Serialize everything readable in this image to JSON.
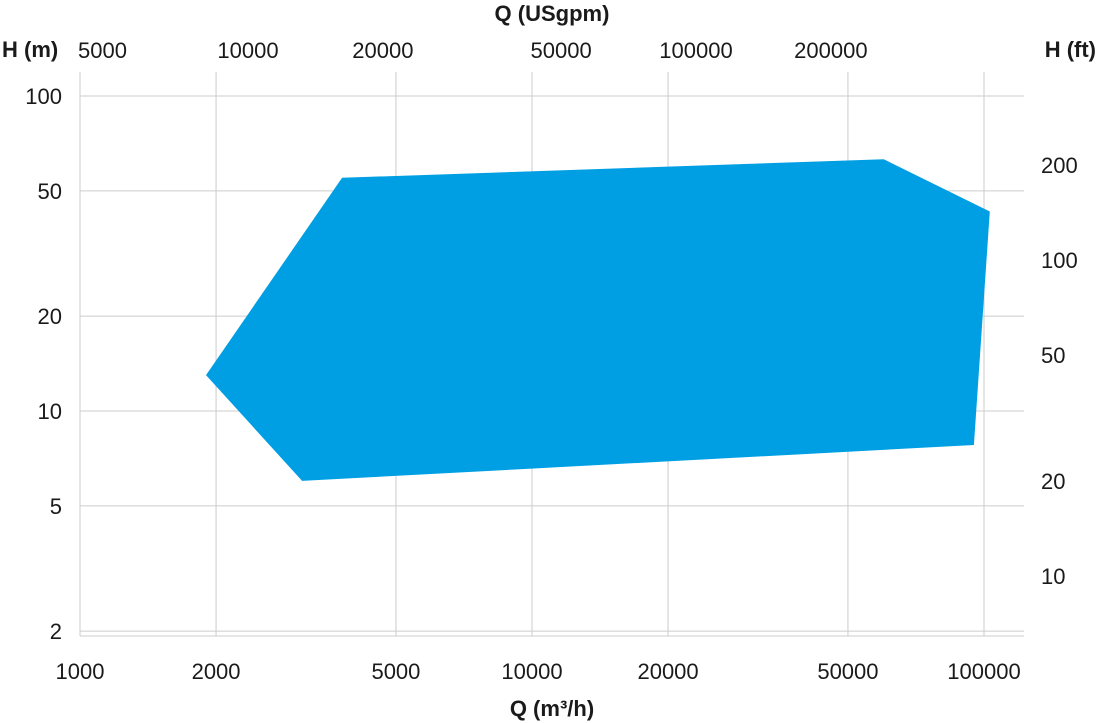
{
  "chart_data": {
    "type": "area",
    "title": "",
    "xlabel": "Q (m³/h)",
    "x2label": "Q (USgpm)",
    "ylabel": "H (m)",
    "y2label": "H (ft)",
    "xscale": "log",
    "yscale": "log",
    "xlim": [
      1000,
      120000
    ],
    "ylim": [
      2,
      125
    ],
    "grid": true,
    "x_ticks": [
      1000,
      2000,
      5000,
      10000,
      20000,
      50000,
      100000
    ],
    "x_tick_labels": [
      "1000",
      "2000",
      "5000",
      "10000",
      "20000",
      "50000",
      "100000"
    ],
    "y_ticks": [
      2,
      5,
      10,
      20,
      50,
      100
    ],
    "y_tick_labels": [
      "2",
      "5",
      "10",
      "20",
      "50",
      "100"
    ],
    "x2_ticks": [
      5000,
      10000,
      20000,
      50000,
      100000,
      200000
    ],
    "x2_tick_labels": [
      "5000",
      "10000",
      "20000",
      "50000",
      "100000",
      "200000"
    ],
    "y2_ticks": [
      10,
      20,
      50,
      100,
      200
    ],
    "y2_tick_labels": [
      "10",
      "20",
      "50",
      "100",
      "200"
    ],
    "series": [
      {
        "color": "#009fe3",
        "points": [
          {
            "x": 3800,
            "y": 55
          },
          {
            "x": 60000,
            "y": 63
          },
          {
            "x": 103000,
            "y": 43
          },
          {
            "x": 95000,
            "y": 7.8
          },
          {
            "x": 3100,
            "y": 6.0
          },
          {
            "x": 1900,
            "y": 13
          }
        ]
      }
    ]
  }
}
